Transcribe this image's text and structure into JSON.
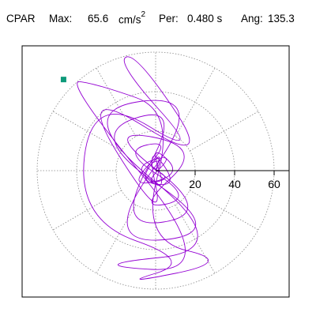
{
  "header": {
    "station": "CPAR",
    "max_label": "Max:",
    "max_value": "65.6",
    "max_unit": "cm/s",
    "max_unit_exp": "2",
    "per_label": "Per:",
    "per_value": "0.480 s",
    "ang_label": "Ang:",
    "ang_value": "135.3"
  },
  "chart_data": {
    "type": "polar-hodogram",
    "title": "",
    "units": "cm/s2",
    "rlim": [
      0,
      70
    ],
    "radial_ticks": [
      20,
      40,
      60
    ],
    "tick_labels": [
      "20",
      "40",
      "60"
    ],
    "grid": true,
    "grid_circle_radii": [
      20,
      40,
      60
    ],
    "grid_spoke_angles_deg": [
      0,
      30,
      60,
      90,
      120,
      150,
      180,
      210,
      240,
      270,
      300,
      330
    ],
    "peak": {
      "amplitude": 65.6,
      "angle_deg": 135.3,
      "marker": "square",
      "color": "#0e9a7a"
    },
    "trace": {
      "color": "#9400d3",
      "description": "particle motion path; points approximate (x, y) in cm/s2",
      "points": [
        [
          0,
          0
        ],
        [
          4,
          6
        ],
        [
          -5,
          3
        ],
        [
          8,
          -4
        ],
        [
          -6,
          -7
        ],
        [
          10,
          9
        ],
        [
          -12,
          2
        ],
        [
          6,
          -12
        ],
        [
          -3,
          14
        ],
        [
          14,
          -2
        ],
        [
          -15,
          -9
        ],
        [
          9,
          16
        ],
        [
          -18,
          10
        ],
        [
          20,
          -14
        ],
        [
          -10,
          -20
        ],
        [
          25,
          12
        ],
        [
          -28,
          22
        ],
        [
          30,
          -22
        ],
        [
          -22,
          -30
        ],
        [
          15,
          35
        ],
        [
          -36,
          18
        ],
        [
          38,
          -32
        ],
        [
          -30,
          -38
        ],
        [
          28,
          40
        ],
        [
          -44,
          30
        ],
        [
          42,
          -40
        ],
        [
          -38,
          -48
        ],
        [
          34,
          -52
        ],
        [
          -46.6,
          46.1
        ],
        [
          -30,
          44
        ],
        [
          10,
          30
        ],
        [
          -8,
          -35
        ],
        [
          40,
          -46
        ],
        [
          -20,
          -58
        ],
        [
          20,
          -46
        ],
        [
          -40,
          -25
        ],
        [
          -32,
          40
        ],
        [
          25,
          5
        ],
        [
          -20,
          55
        ],
        [
          -10,
          60
        ],
        [
          30,
          0
        ],
        [
          -42,
          45
        ],
        [
          5,
          -30
        ],
        [
          -5,
          15
        ],
        [
          12,
          -8
        ],
        [
          -9,
          -6
        ],
        [
          3,
          10
        ],
        [
          0,
          0
        ]
      ]
    }
  }
}
